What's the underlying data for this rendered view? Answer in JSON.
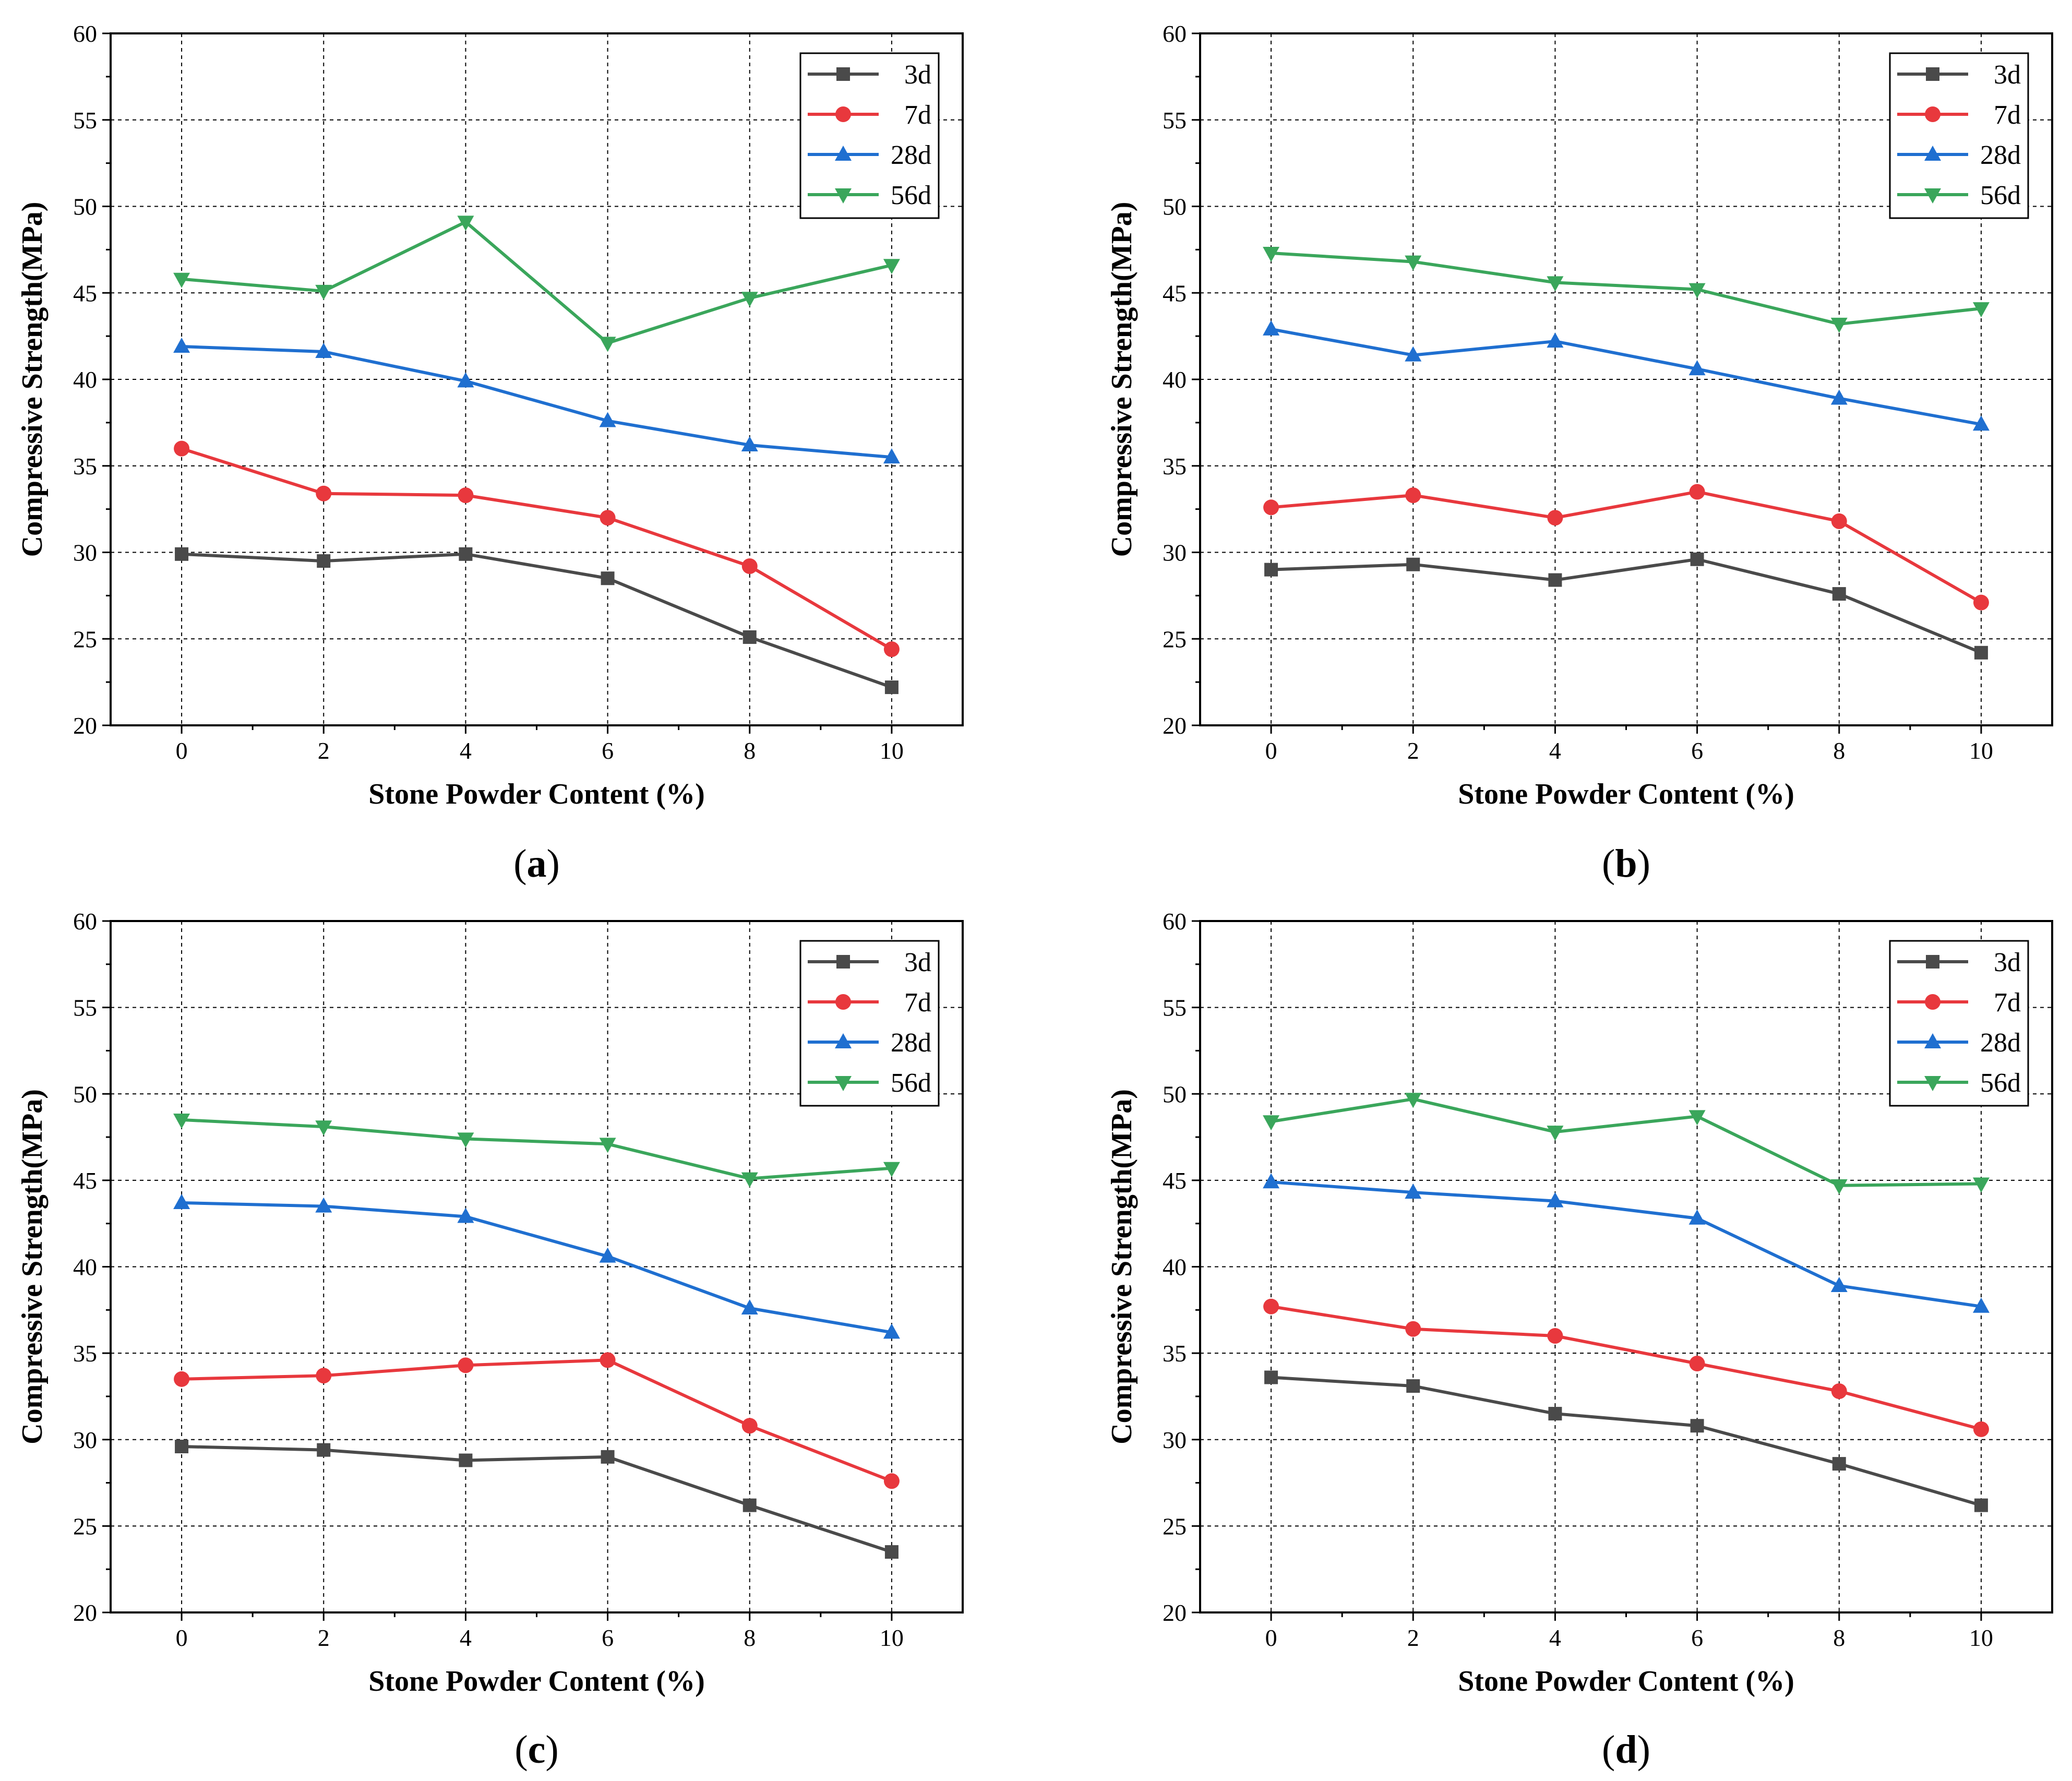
{
  "colors": {
    "3d": "#4a4a4a",
    "7d": "#e8383d",
    "28d": "#1f6fd0",
    "56d": "#3aa65b",
    "grid": "#000000",
    "axis": "#000000"
  },
  "chart_data": [
    {
      "type": "line",
      "panel": "a",
      "caption_open": "(",
      "caption_letter": "a",
      "caption_close": ")",
      "xlabel": "Stone Powder Content (%)",
      "ylabel": "Compressive Strength(MPa)",
      "x": [
        0,
        2,
        4,
        6,
        8,
        10
      ],
      "x_ticks": [
        "0",
        "2",
        "4",
        "6",
        "8",
        "10"
      ],
      "xlim": [
        -1,
        11
      ],
      "ylim": [
        20,
        60
      ],
      "y_ticks": [
        "20",
        "25",
        "30",
        "35",
        "40",
        "45",
        "50",
        "55",
        "60"
      ],
      "grid": true,
      "legend_position": "top-right",
      "series": [
        {
          "name": "3d",
          "marker": "square",
          "values": [
            29.9,
            29.5,
            29.9,
            28.5,
            25.1,
            22.2
          ]
        },
        {
          "name": "7d",
          "marker": "circle",
          "values": [
            36.0,
            33.4,
            33.3,
            32.0,
            29.2,
            24.4
          ]
        },
        {
          "name": "28d",
          "marker": "triangle-up",
          "values": [
            41.9,
            41.6,
            39.9,
            37.6,
            36.2,
            35.5
          ]
        },
        {
          "name": "56d",
          "marker": "triangle-down",
          "values": [
            45.8,
            45.1,
            49.1,
            42.1,
            44.7,
            46.6
          ]
        }
      ]
    },
    {
      "type": "line",
      "panel": "b",
      "caption_open": "(",
      "caption_letter": "b",
      "caption_close": ")",
      "xlabel": "Stone Powder Content (%)",
      "ylabel": "Compressive Strength(MPa)",
      "x": [
        0,
        2,
        4,
        6,
        8,
        10
      ],
      "x_ticks": [
        "0",
        "2",
        "4",
        "6",
        "8",
        "10"
      ],
      "xlim": [
        -1,
        11
      ],
      "ylim": [
        20,
        60
      ],
      "y_ticks": [
        "20",
        "25",
        "30",
        "35",
        "40",
        "45",
        "50",
        "55",
        "60"
      ],
      "grid": true,
      "legend_position": "top-right",
      "series": [
        {
          "name": "3d",
          "marker": "square",
          "values": [
            29.0,
            29.3,
            28.4,
            29.6,
            27.6,
            24.2
          ]
        },
        {
          "name": "7d",
          "marker": "circle",
          "values": [
            32.6,
            33.3,
            32.0,
            33.5,
            31.8,
            27.1
          ]
        },
        {
          "name": "28d",
          "marker": "triangle-up",
          "values": [
            42.9,
            41.4,
            42.2,
            40.6,
            38.9,
            37.4
          ]
        },
        {
          "name": "56d",
          "marker": "triangle-down",
          "values": [
            47.3,
            46.8,
            45.6,
            45.2,
            43.2,
            44.1
          ]
        }
      ]
    },
    {
      "type": "line",
      "panel": "c",
      "caption_open": "(",
      "caption_letter": "c",
      "caption_close": ")",
      "xlabel": "Stone Powder Content (%)",
      "ylabel": "Compressive Strength(MPa)",
      "x": [
        0,
        2,
        4,
        6,
        8,
        10
      ],
      "x_ticks": [
        "0",
        "2",
        "4",
        "6",
        "8",
        "10"
      ],
      "xlim": [
        -1,
        11
      ],
      "ylim": [
        20,
        60
      ],
      "y_ticks": [
        "20",
        "25",
        "30",
        "35",
        "40",
        "45",
        "50",
        "55",
        "60"
      ],
      "grid": true,
      "legend_position": "top-right",
      "series": [
        {
          "name": "3d",
          "marker": "square",
          "values": [
            29.6,
            29.4,
            28.8,
            29.0,
            26.2,
            23.5
          ]
        },
        {
          "name": "7d",
          "marker": "circle",
          "values": [
            33.5,
            33.7,
            34.3,
            34.6,
            30.8,
            27.6
          ]
        },
        {
          "name": "28d",
          "marker": "triangle-up",
          "values": [
            43.7,
            43.5,
            42.9,
            40.6,
            37.6,
            36.2
          ]
        },
        {
          "name": "56d",
          "marker": "triangle-down",
          "values": [
            48.5,
            48.1,
            47.4,
            47.1,
            45.1,
            45.7
          ]
        }
      ]
    },
    {
      "type": "line",
      "panel": "d",
      "caption_open": "(",
      "caption_letter": "d",
      "caption_close": ")",
      "xlabel": "Stone Powder Content (%)",
      "ylabel": "Compressive Strength(MPa)",
      "x": [
        0,
        2,
        4,
        6,
        8,
        10
      ],
      "x_ticks": [
        "0",
        "2",
        "4",
        "6",
        "8",
        "10"
      ],
      "xlim": [
        -1,
        11
      ],
      "ylim": [
        20,
        60
      ],
      "y_ticks": [
        "20",
        "25",
        "30",
        "35",
        "40",
        "45",
        "50",
        "55",
        "60"
      ],
      "grid": true,
      "legend_position": "top-right",
      "series": [
        {
          "name": "3d",
          "marker": "square",
          "values": [
            33.6,
            33.1,
            31.5,
            30.8,
            28.6,
            26.2
          ]
        },
        {
          "name": "7d",
          "marker": "circle",
          "values": [
            37.7,
            36.4,
            36.0,
            34.4,
            32.8,
            30.6
          ]
        },
        {
          "name": "28d",
          "marker": "triangle-up",
          "values": [
            44.9,
            44.3,
            43.8,
            42.8,
            38.9,
            37.7
          ]
        },
        {
          "name": "56d",
          "marker": "triangle-down",
          "values": [
            48.4,
            49.7,
            47.8,
            48.7,
            44.7,
            44.8
          ]
        }
      ]
    }
  ]
}
